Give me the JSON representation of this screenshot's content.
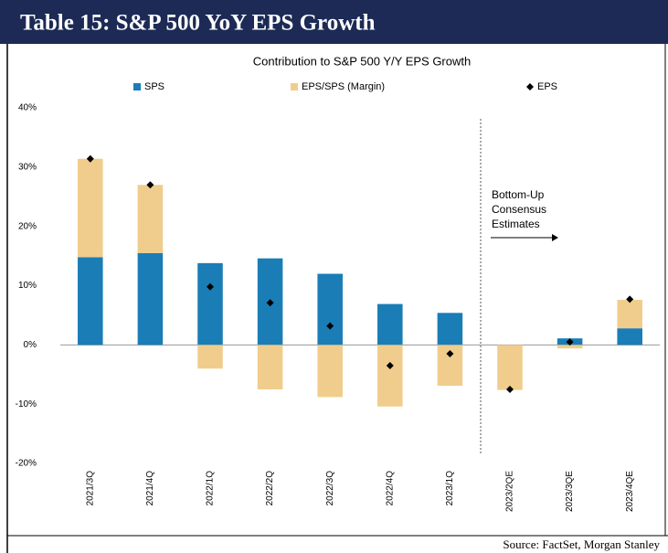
{
  "header": {
    "title": "Table 15: S&P 500 YoY EPS Growth"
  },
  "chart_data": {
    "type": "bar",
    "stacked": true,
    "title": "Contribution to S&P 500 Y/Y EPS Growth",
    "categories": [
      "2021/3Q",
      "2021/4Q",
      "2022/1Q",
      "2022/2Q",
      "2022/3Q",
      "2022/4Q",
      "2023/1Q",
      "2023/2QE",
      "2023/3QE",
      "2023/4QE"
    ],
    "series": [
      {
        "name": "SPS",
        "type": "bar",
        "color": "#1a7db6",
        "values": [
          14.8,
          15.5,
          13.8,
          14.6,
          12.0,
          6.9,
          5.4,
          0,
          1.1,
          2.8
        ]
      },
      {
        "name": "EPS/SPS (Margin)",
        "type": "bar",
        "color": "#f0cd8c",
        "values": [
          16.6,
          11.5,
          -4.0,
          -7.5,
          -8.8,
          -10.4,
          -6.9,
          -7.6,
          -0.6,
          4.8
        ]
      },
      {
        "name": "EPS",
        "type": "scatter",
        "marker": "diamond",
        "color": "#000000",
        "values": [
          31.4,
          27.0,
          9.8,
          7.1,
          3.2,
          -3.5,
          -1.5,
          -7.5,
          0.5,
          7.7
        ]
      }
    ],
    "ylim": [
      -20,
      40
    ],
    "yticks": [
      {
        "value": -20,
        "label": "-20%"
      },
      {
        "value": -10,
        "label": "-10%"
      },
      {
        "value": 0,
        "label": "0%"
      },
      {
        "value": 10,
        "label": "10%"
      },
      {
        "value": 20,
        "label": "20%"
      },
      {
        "value": 30,
        "label": "30%"
      },
      {
        "value": 40,
        "label": "40%"
      }
    ],
    "grid": false,
    "legend": "top",
    "annotation": [
      "Bottom-Up",
      "Consensus",
      "Estimates"
    ]
  },
  "source": "Source: FactSet, Morgan Stanley"
}
